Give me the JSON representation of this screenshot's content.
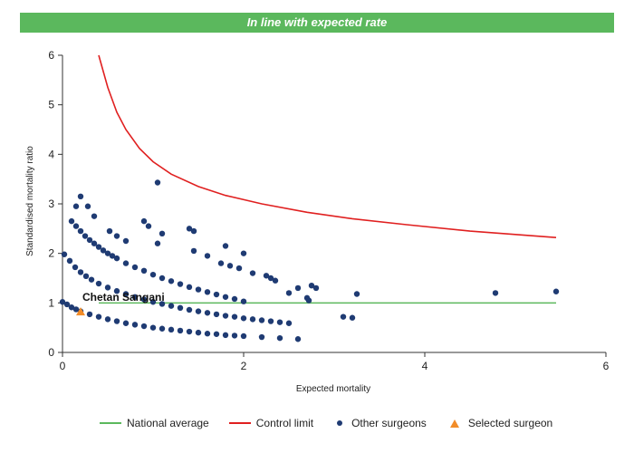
{
  "banner": {
    "text": "In line with expected rate",
    "color": "#5bb85d"
  },
  "chart_data": {
    "type": "scatter",
    "xlabel": "Expected mortality",
    "ylabel": "Standardised mortality ratio",
    "xlim": [
      0,
      6
    ],
    "ylim": [
      0,
      6
    ],
    "xticks": [
      "0",
      "2",
      "4",
      "6"
    ],
    "yticks": [
      "0",
      "1",
      "2",
      "3",
      "4",
      "5",
      "6"
    ],
    "grid": false,
    "legend_position": "bottom",
    "colors": {
      "national_average": "#5bb85d",
      "control_limit": "#e02020",
      "other_surgeons": "#1f3b73",
      "selected_surgeon": "#f28c28"
    },
    "series": [
      {
        "name": "National average",
        "type": "line",
        "x": [
          0.4,
          5.45
        ],
        "y": [
          1.0,
          1.0
        ]
      },
      {
        "name": "Control limit",
        "type": "line",
        "x": [
          0.4,
          0.5,
          0.6,
          0.7,
          0.85,
          1.0,
          1.2,
          1.5,
          1.8,
          2.2,
          2.7,
          3.2,
          3.8,
          4.5,
          5.45
        ],
        "y": [
          6.0,
          5.35,
          4.85,
          4.5,
          4.12,
          3.85,
          3.6,
          3.35,
          3.17,
          3.0,
          2.83,
          2.7,
          2.58,
          2.45,
          2.32
        ]
      },
      {
        "name": "Other surgeons",
        "type": "scatter",
        "x": [
          0.1,
          0.15,
          0.2,
          0.25,
          0.3,
          0.35,
          0.4,
          0.45,
          0.5,
          0.55,
          0.6,
          0.7,
          0.8,
          0.9,
          1.0,
          1.1,
          1.2,
          1.3,
          1.4,
          1.5,
          1.6,
          1.7,
          1.8,
          1.9,
          2.0,
          0.02,
          0.08,
          0.14,
          0.2,
          0.26,
          0.32,
          0.4,
          0.5,
          0.6,
          0.7,
          0.8,
          0.9,
          1.0,
          1.1,
          1.2,
          1.3,
          1.4,
          1.5,
          1.6,
          1.7,
          1.8,
          1.9,
          2.0,
          2.1,
          2.2,
          2.3,
          2.4,
          2.5,
          0.0,
          0.05,
          0.1,
          0.15,
          0.2,
          0.3,
          0.4,
          0.5,
          0.6,
          0.7,
          0.8,
          0.9,
          1.0,
          1.1,
          1.2,
          1.3,
          1.4,
          1.5,
          1.6,
          1.7,
          1.8,
          1.9,
          2.0,
          2.2,
          2.4,
          2.6,
          0.15,
          0.2,
          0.28,
          0.35,
          0.52,
          0.6,
          0.7,
          0.9,
          0.95,
          1.05,
          1.1,
          1.4,
          1.45,
          1.45,
          1.6,
          1.75,
          1.8,
          1.85,
          1.95,
          2.0,
          2.1,
          2.25,
          2.3,
          2.35,
          2.5,
          2.6,
          2.7,
          2.72,
          2.75,
          2.8,
          3.1,
          3.2,
          3.25,
          4.78,
          5.45,
          1.05
        ],
        "y": [
          2.65,
          2.55,
          2.45,
          2.35,
          2.27,
          2.2,
          2.13,
          2.06,
          2.0,
          1.95,
          1.9,
          1.8,
          1.72,
          1.65,
          1.57,
          1.5,
          1.44,
          1.38,
          1.32,
          1.27,
          1.22,
          1.17,
          1.12,
          1.08,
          1.03,
          1.98,
          1.85,
          1.72,
          1.62,
          1.54,
          1.47,
          1.39,
          1.31,
          1.24,
          1.18,
          1.12,
          1.07,
          1.02,
          0.98,
          0.94,
          0.9,
          0.86,
          0.83,
          0.8,
          0.77,
          0.74,
          0.72,
          0.69,
          0.67,
          0.65,
          0.63,
          0.61,
          0.59,
          1.02,
          0.97,
          0.91,
          0.87,
          0.83,
          0.77,
          0.72,
          0.67,
          0.63,
          0.59,
          0.56,
          0.53,
          0.5,
          0.48,
          0.46,
          0.44,
          0.42,
          0.4,
          0.38,
          0.37,
          0.35,
          0.34,
          0.33,
          0.31,
          0.29,
          0.27,
          2.95,
          3.15,
          2.95,
          2.75,
          2.45,
          2.35,
          2.25,
          2.65,
          2.55,
          2.2,
          2.4,
          2.5,
          2.45,
          2.05,
          1.95,
          1.8,
          2.15,
          1.75,
          1.7,
          2.0,
          1.6,
          1.55,
          1.5,
          1.45,
          1.2,
          1.3,
          1.1,
          1.05,
          1.35,
          1.3,
          0.72,
          0.7,
          1.18,
          1.2,
          1.23,
          3.43
        ]
      },
      {
        "name": "Selected surgeon",
        "type": "scatter",
        "x": [
          0.2
        ],
        "y": [
          0.82
        ],
        "label": "Chetan Sangani"
      }
    ]
  }
}
